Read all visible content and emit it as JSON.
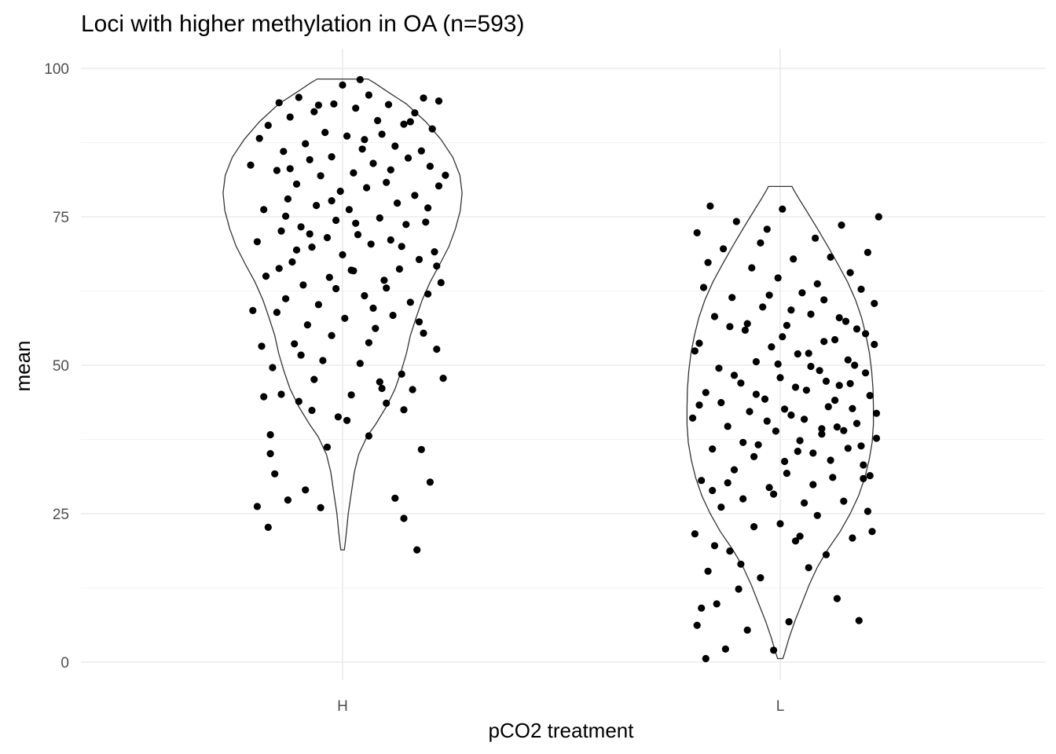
{
  "chart_data": {
    "type": "scatter",
    "subtype": "violin-with-jitter",
    "title": "Loci with higher methylation in OA (n=593)",
    "xlabel": "pCO2 treatment",
    "ylabel": "mean",
    "categories": [
      "H",
      "L"
    ],
    "ylim": [
      0,
      100
    ],
    "yticks": [
      0,
      25,
      50,
      75,
      100
    ],
    "grid": true,
    "colors": {
      "points": "#000000",
      "violin_outline": "#333333",
      "grid": "#ebebeb",
      "tick_text": "#4d4d4d"
    },
    "violins": [
      {
        "category": "H",
        "y_range": [
          18.9,
          98.2
        ],
        "profile": [
          [
            18.9,
            0.004
          ],
          [
            20,
            0.006
          ],
          [
            22,
            0.009
          ],
          [
            25,
            0.013
          ],
          [
            28,
            0.019
          ],
          [
            32,
            0.027
          ],
          [
            35,
            0.037
          ],
          [
            38,
            0.056
          ],
          [
            40,
            0.075
          ],
          [
            43,
            0.1
          ],
          [
            46,
            0.12
          ],
          [
            49,
            0.134
          ],
          [
            52,
            0.146
          ],
          [
            55,
            0.155
          ],
          [
            58,
            0.168
          ],
          [
            61,
            0.182
          ],
          [
            64,
            0.2
          ],
          [
            67,
            0.222
          ],
          [
            70,
            0.243
          ],
          [
            73,
            0.258
          ],
          [
            76,
            0.269
          ],
          [
            79,
            0.273
          ],
          [
            82,
            0.268
          ],
          [
            85,
            0.252
          ],
          [
            88,
            0.225
          ],
          [
            91,
            0.19
          ],
          [
            94,
            0.146
          ],
          [
            96,
            0.104
          ],
          [
            97.5,
            0.074
          ],
          [
            98.2,
            0.058
          ]
        ]
      },
      {
        "category": "L",
        "y_range": [
          0.6,
          80.1
        ],
        "profile": [
          [
            0.6,
            0.006
          ],
          [
            1.5,
            0.01
          ],
          [
            4,
            0.02
          ],
          [
            7,
            0.034
          ],
          [
            10,
            0.05
          ],
          [
            13,
            0.066
          ],
          [
            16,
            0.085
          ],
          [
            19,
            0.109
          ],
          [
            22,
            0.137
          ],
          [
            25,
            0.16
          ],
          [
            28,
            0.179
          ],
          [
            31,
            0.193
          ],
          [
            34,
            0.203
          ],
          [
            37,
            0.21
          ],
          [
            40,
            0.213
          ],
          [
            43,
            0.213
          ],
          [
            46,
            0.212
          ],
          [
            49,
            0.209
          ],
          [
            52,
            0.204
          ],
          [
            55,
            0.196
          ],
          [
            58,
            0.186
          ],
          [
            61,
            0.172
          ],
          [
            64,
            0.154
          ],
          [
            67,
            0.132
          ],
          [
            70,
            0.109
          ],
          [
            73,
            0.085
          ],
          [
            76,
            0.06
          ],
          [
            78,
            0.043
          ],
          [
            79.5,
            0.031
          ],
          [
            80.1,
            0.027
          ]
        ]
      }
    ],
    "points": {
      "H": [
        [
          -0.42,
          83.7
        ],
        [
          -0.39,
          70.8
        ],
        [
          -0.39,
          26.2
        ],
        [
          -0.38,
          88.2
        ],
        [
          -0.37,
          53.2
        ],
        [
          -0.36,
          76.2
        ],
        [
          -0.35,
          65.0
        ],
        [
          -0.34,
          90.4
        ],
        [
          -0.34,
          22.7
        ],
        [
          -0.33,
          38.3
        ],
        [
          -0.32,
          49.6
        ],
        [
          -0.31,
          31.7
        ],
        [
          -0.3,
          82.8
        ],
        [
          -0.3,
          58.9
        ],
        [
          -0.29,
          94.2
        ],
        [
          -0.28,
          45.1
        ],
        [
          -0.28,
          72.6
        ],
        [
          -0.27,
          86.0
        ],
        [
          -0.26,
          61.2
        ],
        [
          -0.25,
          27.3
        ],
        [
          -0.25,
          78.0
        ],
        [
          -0.24,
          91.8
        ],
        [
          -0.23,
          67.4
        ],
        [
          -0.22,
          53.6
        ],
        [
          -0.21,
          80.5
        ],
        [
          -0.2,
          43.9
        ],
        [
          -0.2,
          95.1
        ],
        [
          -0.19,
          73.3
        ],
        [
          -0.18,
          63.5
        ],
        [
          -0.17,
          87.3
        ],
        [
          -0.17,
          29.0
        ],
        [
          -0.16,
          56.8
        ],
        [
          -0.15,
          84.6
        ],
        [
          -0.14,
          69.9
        ],
        [
          -0.14,
          42.4
        ],
        [
          -0.13,
          92.7
        ],
        [
          -0.12,
          76.9
        ],
        [
          -0.11,
          60.2
        ],
        [
          -0.1,
          26.0
        ],
        [
          -0.1,
          81.9
        ],
        [
          -0.09,
          50.8
        ],
        [
          -0.08,
          89.2
        ],
        [
          -0.07,
          71.5
        ],
        [
          -0.06,
          64.8
        ],
        [
          -0.05,
          85.1
        ],
        [
          -0.05,
          55.0
        ],
        [
          -0.04,
          94.0
        ],
        [
          -0.03,
          74.4
        ],
        [
          -0.02,
          41.3
        ],
        [
          -0.01,
          79.3
        ],
        [
          0.0,
          68.6
        ],
        [
          0.0,
          97.2
        ],
        [
          0.01,
          57.9
        ],
        [
          0.02,
          88.6
        ],
        [
          0.03,
          76.2
        ],
        [
          0.04,
          45.0
        ],
        [
          0.05,
          82.4
        ],
        [
          0.05,
          65.9
        ],
        [
          0.06,
          93.3
        ],
        [
          0.07,
          72.0
        ],
        [
          0.08,
          98.1
        ],
        [
          0.08,
          50.3
        ],
        [
          0.09,
          86.4
        ],
        [
          0.1,
          61.7
        ],
        [
          0.11,
          79.9
        ],
        [
          0.12,
          38.1
        ],
        [
          0.12,
          95.5
        ],
        [
          0.13,
          70.4
        ],
        [
          0.14,
          84.0
        ],
        [
          0.15,
          56.2
        ],
        [
          0.16,
          91.2
        ],
        [
          0.17,
          74.8
        ],
        [
          0.17,
          47.2
        ],
        [
          0.18,
          88.9
        ],
        [
          0.19,
          64.3
        ],
        [
          0.2,
          80.8
        ],
        [
          0.2,
          43.6
        ],
        [
          0.21,
          93.9
        ],
        [
          0.22,
          71.1
        ],
        [
          0.23,
          58.4
        ],
        [
          0.24,
          86.9
        ],
        [
          0.24,
          27.6
        ],
        [
          0.25,
          77.3
        ],
        [
          0.26,
          66.2
        ],
        [
          0.27,
          48.5
        ],
        [
          0.28,
          90.6
        ],
        [
          0.28,
          24.2
        ],
        [
          0.29,
          73.7
        ],
        [
          0.3,
          84.9
        ],
        [
          0.31,
          60.6
        ],
        [
          0.32,
          45.9
        ],
        [
          0.33,
          92.5
        ],
        [
          0.33,
          78.6
        ],
        [
          0.34,
          18.9
        ],
        [
          0.35,
          67.8
        ],
        [
          0.36,
          86.1
        ],
        [
          0.37,
          55.4
        ],
        [
          0.37,
          95.0
        ],
        [
          0.38,
          74.1
        ],
        [
          0.39,
          62.0
        ],
        [
          0.4,
          83.5
        ],
        [
          0.4,
          30.3
        ],
        [
          0.41,
          89.8
        ],
        [
          0.42,
          69.1
        ],
        [
          0.43,
          52.7
        ],
        [
          0.44,
          94.5
        ],
        [
          0.44,
          80.2
        ],
        [
          0.45,
          63.9
        ],
        [
          0.46,
          47.8
        ],
        [
          0.47,
          82.0
        ],
        [
          -0.41,
          59.2
        ],
        [
          -0.36,
          44.7
        ],
        [
          -0.33,
          35.1
        ],
        [
          -0.29,
          66.3
        ],
        [
          -0.24,
          83.1
        ],
        [
          -0.19,
          51.7
        ],
        [
          -0.15,
          72.1
        ],
        [
          -0.11,
          93.8
        ],
        [
          -0.07,
          36.2
        ],
        [
          -0.03,
          62.9
        ],
        [
          0.02,
          40.7
        ],
        [
          0.06,
          73.9
        ],
        [
          0.1,
          88.0
        ],
        [
          0.14,
          59.6
        ],
        [
          0.18,
          46.1
        ],
        [
          0.22,
          82.9
        ],
        [
          0.27,
          70.0
        ],
        [
          0.31,
          91.0
        ],
        [
          0.35,
          57.3
        ],
        [
          0.39,
          76.5
        ],
        [
          0.43,
          66.7
        ],
        [
          -0.21,
          69.4
        ],
        [
          -0.13,
          47.6
        ],
        [
          -0.05,
          77.7
        ],
        [
          0.04,
          66.0
        ],
        [
          0.12,
          53.8
        ],
        [
          0.2,
          63.0
        ],
        [
          0.28,
          42.5
        ],
        [
          0.36,
          35.8
        ],
        [
          -0.26,
          75.1
        ]
      ],
      "L": [
        [
          -0.4,
          41.1
        ],
        [
          -0.39,
          21.6
        ],
        [
          -0.38,
          72.3
        ],
        [
          -0.38,
          6.2
        ],
        [
          -0.37,
          53.7
        ],
        [
          -0.36,
          30.6
        ],
        [
          -0.35,
          63.1
        ],
        [
          -0.34,
          0.6
        ],
        [
          -0.34,
          45.4
        ],
        [
          -0.33,
          15.3
        ],
        [
          -0.32,
          76.8
        ],
        [
          -0.31,
          35.9
        ],
        [
          -0.3,
          58.2
        ],
        [
          -0.29,
          9.8
        ],
        [
          -0.28,
          49.5
        ],
        [
          -0.27,
          26.1
        ],
        [
          -0.26,
          69.6
        ],
        [
          -0.25,
          2.2
        ],
        [
          -0.24,
          39.7
        ],
        [
          -0.23,
          18.7
        ],
        [
          -0.22,
          61.4
        ],
        [
          -0.21,
          32.4
        ],
        [
          -0.2,
          74.2
        ],
        [
          -0.19,
          12.3
        ],
        [
          -0.18,
          47.0
        ],
        [
          -0.17,
          27.5
        ],
        [
          -0.16,
          55.9
        ],
        [
          -0.15,
          5.4
        ],
        [
          -0.14,
          42.2
        ],
        [
          -0.13,
          66.4
        ],
        [
          -0.12,
          22.8
        ],
        [
          -0.11,
          50.6
        ],
        [
          -0.1,
          36.6
        ],
        [
          -0.09,
          14.2
        ],
        [
          -0.08,
          59.8
        ],
        [
          -0.07,
          44.3
        ],
        [
          -0.06,
          72.9
        ],
        [
          -0.05,
          29.4
        ],
        [
          -0.04,
          53.1
        ],
        [
          -0.03,
          2.0
        ],
        [
          -0.02,
          38.9
        ],
        [
          -0.01,
          64.7
        ],
        [
          0.0,
          23.3
        ],
        [
          0.0,
          47.9
        ],
        [
          0.01,
          76.3
        ],
        [
          0.02,
          33.8
        ],
        [
          0.03,
          56.7
        ],
        [
          0.04,
          6.8
        ],
        [
          0.05,
          41.6
        ],
        [
          0.06,
          67.9
        ],
        [
          0.07,
          20.4
        ],
        [
          0.08,
          51.9
        ],
        [
          0.09,
          37.3
        ],
        [
          0.1,
          62.2
        ],
        [
          0.11,
          26.8
        ],
        [
          0.12,
          45.8
        ],
        [
          0.13,
          15.9
        ],
        [
          0.14,
          58.6
        ],
        [
          0.15,
          35.2
        ],
        [
          0.16,
          71.4
        ],
        [
          0.17,
          24.7
        ],
        [
          0.18,
          49.1
        ],
        [
          0.19,
          39.3
        ],
        [
          0.2,
          61.0
        ],
        [
          0.21,
          18.1
        ],
        [
          0.22,
          43.0
        ],
        [
          0.23,
          68.2
        ],
        [
          0.24,
          31.1
        ],
        [
          0.25,
          54.3
        ],
        [
          0.26,
          10.7
        ],
        [
          0.27,
          46.6
        ],
        [
          0.28,
          73.6
        ],
        [
          0.29,
          27.1
        ],
        [
          0.3,
          57.4
        ],
        [
          0.31,
          36.0
        ],
        [
          0.32,
          65.6
        ],
        [
          0.33,
          20.9
        ],
        [
          0.34,
          50.0
        ],
        [
          0.35,
          40.2
        ],
        [
          0.36,
          7.0
        ],
        [
          0.37,
          62.8
        ],
        [
          0.38,
          33.2
        ],
        [
          0.39,
          55.3
        ],
        [
          0.4,
          25.4
        ],
        [
          0.4,
          69.0
        ],
        [
          0.41,
          44.9
        ],
        [
          0.42,
          22.0
        ],
        [
          0.43,
          60.4
        ],
        [
          0.44,
          37.7
        ],
        [
          0.45,
          75.0
        ],
        [
          -0.39,
          52.4
        ],
        [
          -0.36,
          9.1
        ],
        [
          -0.33,
          67.3
        ],
        [
          -0.3,
          19.6
        ],
        [
          -0.27,
          43.7
        ],
        [
          -0.24,
          30.2
        ],
        [
          -0.21,
          48.3
        ],
        [
          -0.18,
          16.5
        ],
        [
          -0.15,
          57.0
        ],
        [
          -0.12,
          34.6
        ],
        [
          -0.09,
          70.6
        ],
        [
          -0.06,
          40.6
        ],
        [
          -0.03,
          28.3
        ],
        [
          0.01,
          54.8
        ],
        [
          0.03,
          31.8
        ],
        [
          0.05,
          59.3
        ],
        [
          0.07,
          46.3
        ],
        [
          0.09,
          21.2
        ],
        [
          0.11,
          40.9
        ],
        [
          0.13,
          52.0
        ],
        [
          0.15,
          29.9
        ],
        [
          0.17,
          63.7
        ],
        [
          0.19,
          38.4
        ],
        [
          0.21,
          47.3
        ],
        [
          0.23,
          34.0
        ],
        [
          0.25,
          44.1
        ],
        [
          0.27,
          58.0
        ],
        [
          0.29,
          39.0
        ],
        [
          0.31,
          50.9
        ],
        [
          0.33,
          42.7
        ],
        [
          0.35,
          56.1
        ],
        [
          0.37,
          36.4
        ],
        [
          0.39,
          48.7
        ],
        [
          0.41,
          31.4
        ],
        [
          0.43,
          53.5
        ],
        [
          -0.37,
          43.3
        ],
        [
          -0.31,
          28.9
        ],
        [
          -0.23,
          56.5
        ],
        [
          -0.17,
          37.0
        ],
        [
          -0.11,
          45.1
        ],
        [
          -0.05,
          61.8
        ],
        [
          0.02,
          42.6
        ],
        [
          0.08,
          35.5
        ],
        [
          0.14,
          49.8
        ],
        [
          0.2,
          54.0
        ],
        [
          0.26,
          39.6
        ],
        [
          0.32,
          46.9
        ],
        [
          0.38,
          30.9
        ],
        [
          0.44,
          41.9
        ],
        [
          -0.01,
          50.2
        ]
      ]
    }
  }
}
